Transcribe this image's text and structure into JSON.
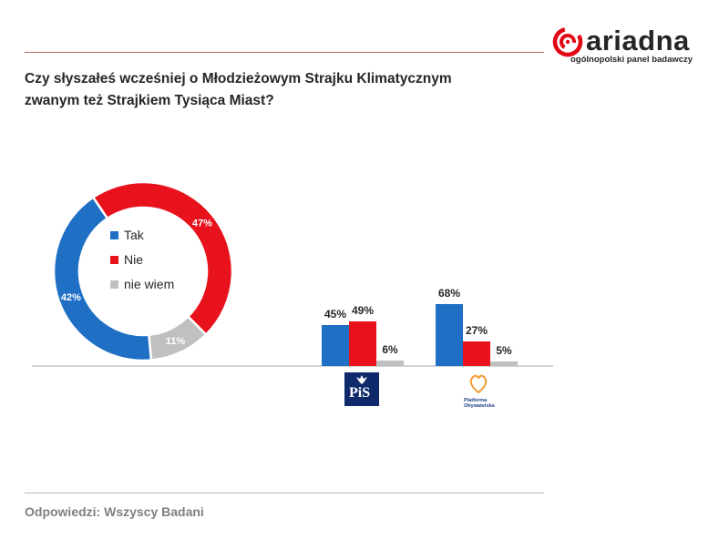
{
  "brand": {
    "name": "ariadna",
    "tagline": "ogólnopolski panel badawczy",
    "color": "#e30613"
  },
  "question": {
    "line1": "Czy słyszałeś wcześniej o Młodzieżowym Strajku Klimatycznym",
    "line2": "zwanym też Strajkiem Tysiąca Miast?"
  },
  "footer": "Odpowiedzi: Wszyscy Badani",
  "logos": {
    "pis": "PiS",
    "po_line1": "Platforma",
    "po_line2": "Obywatelska"
  },
  "colors": {
    "tak": "#1f6fc5",
    "nie": "#e8121d",
    "nie_wiem": "#c0c0c0"
  },
  "chart_data": [
    {
      "type": "pie",
      "donut": true,
      "legend_position": "center",
      "categories": [
        "Tak",
        "Nie",
        "nie wiem"
      ],
      "values": [
        42,
        47,
        11
      ],
      "labels": [
        "42%",
        "47%",
        "11%"
      ]
    },
    {
      "type": "bar",
      "categories": [
        "PiS",
        "Platforma Obywatelska"
      ],
      "series": [
        {
          "name": "Tak",
          "values": [
            45,
            68
          ],
          "labels": [
            "45%",
            "68%"
          ]
        },
        {
          "name": "Nie",
          "values": [
            49,
            27
          ],
          "labels": [
            "49%",
            "27%"
          ]
        },
        {
          "name": "nie wiem",
          "values": [
            6,
            5
          ],
          "labels": [
            "6%",
            "5%"
          ]
        }
      ],
      "ylim": [
        0,
        100
      ],
      "grid": false
    }
  ]
}
